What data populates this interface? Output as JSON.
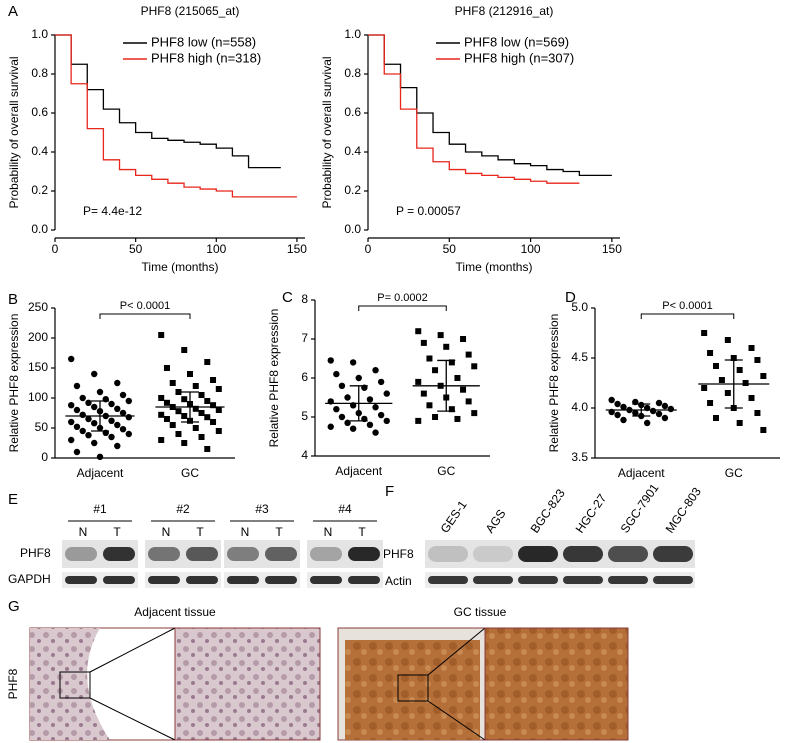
{
  "chart_data": [
    {
      "type": "survival",
      "panel": "A",
      "title": "PHF8 (215065_at)",
      "x_label": "Time (months)",
      "y_label": "Probability of overall survival",
      "xlim": [
        0,
        155
      ],
      "xticks": [
        0,
        50,
        100,
        150
      ],
      "ylim": [
        0,
        1
      ],
      "yticks": [
        {
          "value": 0,
          "label": "0.0"
        },
        0.2,
        0.4,
        0.6,
        0.8,
        {
          "value": 1,
          "label": "1.0"
        }
      ],
      "annotation": "P= 4.4e-12",
      "legend": "upper left",
      "series": [
        {
          "name": "PHF8 low (n=558)",
          "color": "#000000",
          "x": [
            0,
            10,
            20,
            30,
            40,
            50,
            60,
            70,
            80,
            90,
            100,
            110,
            120,
            130,
            140
          ],
          "values": [
            1,
            0.85,
            0.72,
            0.62,
            0.55,
            0.5,
            0.47,
            0.46,
            0.45,
            0.44,
            0.42,
            0.38,
            0.32,
            0.32,
            0.32
          ]
        },
        {
          "name": "PHF8 high (n=318)",
          "color": "#e8261c",
          "x": [
            0,
            10,
            20,
            30,
            40,
            50,
            60,
            70,
            80,
            90,
            100,
            110,
            120,
            150
          ],
          "values": [
            1,
            0.75,
            0.52,
            0.36,
            0.31,
            0.28,
            0.26,
            0.24,
            0.22,
            0.21,
            0.2,
            0.17,
            0.17,
            0.17
          ]
        }
      ]
    },
    {
      "type": "survival",
      "panel": "",
      "title": "PHF8 (212916_at)",
      "x_label": "Time (months)",
      "y_label": "Probability of overall survival",
      "xlim": [
        0,
        155
      ],
      "xticks": [
        0,
        50,
        100,
        150
      ],
      "ylim": [
        0,
        1
      ],
      "yticks": [
        {
          "value": 0,
          "label": "0.0"
        },
        0.2,
        0.4,
        0.6,
        0.8,
        {
          "value": 1,
          "label": "1.0"
        }
      ],
      "annotation": "P = 0.00057",
      "legend": "upper left",
      "series": [
        {
          "name": "PHF8 low (n=569)",
          "color": "#000000",
          "x": [
            0,
            10,
            20,
            30,
            40,
            50,
            60,
            70,
            80,
            90,
            100,
            110,
            120,
            130,
            150
          ],
          "values": [
            1,
            0.85,
            0.73,
            0.6,
            0.5,
            0.44,
            0.4,
            0.38,
            0.36,
            0.34,
            0.33,
            0.31,
            0.3,
            0.28,
            0.28
          ]
        },
        {
          "name": "PHF8 high (n=307)",
          "color": "#e8261c",
          "x": [
            0,
            10,
            20,
            30,
            40,
            50,
            60,
            70,
            80,
            90,
            100,
            110,
            130
          ],
          "values": [
            1,
            0.8,
            0.62,
            0.42,
            0.35,
            0.31,
            0.29,
            0.28,
            0.27,
            0.26,
            0.25,
            0.24,
            0.24
          ]
        }
      ]
    },
    {
      "type": "dot",
      "panel": "B",
      "y_label": "Relative PHF8 expression",
      "categories": [
        "Adjacent",
        "GC"
      ],
      "markers": [
        "circle",
        "square"
      ],
      "color": "#000000",
      "ylim": [
        0,
        250
      ],
      "yticks": [
        0,
        50,
        100,
        150,
        200,
        250
      ],
      "annotation": "P< 0.0001",
      "groups": [
        {
          "values": [
            165,
            140,
            125,
            120,
            110,
            105,
            100,
            98,
            95,
            92,
            90,
            88,
            85,
            82,
            80,
            78,
            75,
            72,
            70,
            68,
            65,
            62,
            60,
            58,
            55,
            52,
            50,
            48,
            45,
            42,
            40,
            38,
            35,
            30,
            25,
            20,
            10,
            2
          ],
          "mean": 70,
          "sd": 25
        },
        {
          "values": [
            205,
            180,
            160,
            150,
            140,
            130,
            125,
            120,
            115,
            110,
            105,
            100,
            98,
            95,
            92,
            90,
            88,
            85,
            82,
            80,
            78,
            75,
            72,
            70,
            68,
            65,
            62,
            60,
            55,
            50,
            45,
            40,
            35,
            30,
            25,
            15
          ],
          "mean": 85,
          "sd": 25
        }
      ]
    },
    {
      "type": "dot",
      "panel": "C",
      "y_label": "Relative PHF8 expression",
      "categories": [
        "Adjacent",
        "GC"
      ],
      "markers": [
        "circle",
        "square"
      ],
      "color": "#000000",
      "ylim": [
        4,
        8
      ],
      "yticks": [
        4,
        5,
        6,
        7,
        8
      ],
      "annotation": "P= 0.0002",
      "groups": [
        {
          "values": [
            6.45,
            6.4,
            6.2,
            6.1,
            6.0,
            5.9,
            5.8,
            5.75,
            5.6,
            5.5,
            5.45,
            5.4,
            5.3,
            5.25,
            5.2,
            5.1,
            5.05,
            5.0,
            4.95,
            4.9,
            4.85,
            4.8,
            4.75,
            4.7,
            4.6
          ],
          "mean": 5.35,
          "sd": 0.45
        },
        {
          "values": [
            7.2,
            7.1,
            7.0,
            6.9,
            6.8,
            6.6,
            6.5,
            6.4,
            6.3,
            6.2,
            6.0,
            5.9,
            5.8,
            5.7,
            5.6,
            5.5,
            5.4,
            5.3,
            5.2,
            5.1,
            5.0,
            4.95,
            4.9
          ],
          "mean": 5.8,
          "sd": 0.65
        }
      ]
    },
    {
      "type": "dot",
      "panel": "D",
      "y_label": "Relative PHF8 expression",
      "categories": [
        "Adjacent",
        "GC"
      ],
      "markers": [
        "circle",
        "square"
      ],
      "color": "#000000",
      "ylim": [
        3.5,
        5
      ],
      "yticks": [
        3.5,
        {
          "value": 4,
          "label": "4.0"
        },
        4.5,
        {
          "value": 5,
          "label": "5.0"
        }
      ],
      "annotation": "P< 0.0001",
      "groups": [
        {
          "values": [
            4.08,
            4.06,
            4.05,
            4.04,
            4.03,
            4.02,
            4.01,
            4.0,
            3.99,
            3.98,
            3.97,
            3.96,
            3.95,
            3.94,
            3.93,
            3.92,
            3.9,
            3.88,
            3.85
          ],
          "mean": 3.98,
          "sd": 0.06
        },
        {
          "values": [
            4.75,
            4.68,
            4.6,
            4.55,
            4.5,
            4.48,
            4.42,
            4.38,
            4.32,
            4.28,
            4.25,
            4.2,
            4.15,
            4.1,
            4.05,
            4.0,
            3.95,
            3.9,
            3.85,
            3.78
          ],
          "mean": 4.24,
          "sd": 0.24
        }
      ]
    }
  ],
  "blot_e": {
    "label": "E",
    "groups": [
      "#1",
      "#2",
      "#3",
      "#4"
    ],
    "lanes": [
      "N",
      "T"
    ],
    "rows": [
      "PHF8",
      "GAPDH"
    ]
  },
  "blot_f": {
    "label": "F",
    "lanes": [
      "GES-1",
      "AGS",
      "BGC-823",
      "HGC-27",
      "SGC-7901",
      "MGC-803"
    ],
    "rows": [
      "PHF8",
      "Actin"
    ]
  },
  "histology": {
    "label": "G",
    "row_label": "PHF8",
    "titles": [
      "Adjacent tissue",
      "GC tissue"
    ]
  }
}
